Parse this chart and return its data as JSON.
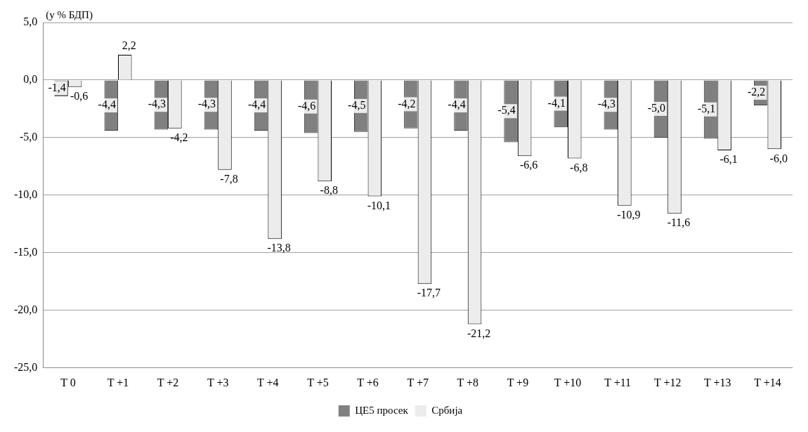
{
  "chart_data": {
    "type": "bar",
    "ylabel": "(у % БДП)",
    "categories": [
      "T 0",
      "T +1",
      "T +2",
      "T +3",
      "T +4",
      "T +5",
      "T +6",
      "T +7",
      "T +8",
      "T +9",
      "T +10",
      "T +11",
      "T +12",
      "T +13",
      "T +14"
    ],
    "series": [
      {
        "name": "ЦЕ5 просек",
        "color": "#808080",
        "values": [
          -1.4,
          -4.4,
          -4.3,
          -4.3,
          -4.4,
          -4.6,
          -4.5,
          -4.2,
          -4.4,
          -5.4,
          -4.1,
          -4.3,
          -5.0,
          -5.1,
          -2.2
        ],
        "value_labels": [
          "-1,4",
          "-4,4",
          "-4,3",
          "-4,3",
          "-4,4",
          "-4,6",
          "-4,5",
          "-4,2",
          "-4,4",
          "-5,4",
          "-4,1",
          "-4,3",
          "-5,0",
          "-5,1",
          "-2,2"
        ]
      },
      {
        "name": "Србија",
        "color": "#ececec",
        "values": [
          -0.6,
          2.2,
          -4.2,
          -7.8,
          -13.8,
          -8.8,
          -10.1,
          -17.7,
          -21.2,
          -6.6,
          -6.8,
          -10.9,
          -11.6,
          -6.1,
          -6.0
        ],
        "value_labels": [
          "-0,6",
          "2,2",
          "-4,2",
          "-7,8",
          "-13,8",
          "-8,8",
          "-10,1",
          "-17,7",
          "-21,2",
          "-6,6",
          "-6,8",
          "-10,9",
          "-11,6",
          "-6,1",
          "-6,0"
        ]
      }
    ],
    "ylim": [
      -25,
      5
    ],
    "yticks": [
      {
        "value": -25,
        "label": "-25,0"
      },
      {
        "value": -20,
        "label": "-20,0"
      },
      {
        "value": -15,
        "label": "-15,0"
      },
      {
        "value": -10,
        "label": "-10,0"
      },
      {
        "value": -5,
        "label": "-5,0"
      },
      {
        "value": 0,
        "label": "0,0"
      },
      {
        "value": 5,
        "label": "5,0"
      }
    ],
    "grid": "y",
    "legend": "bottom"
  }
}
